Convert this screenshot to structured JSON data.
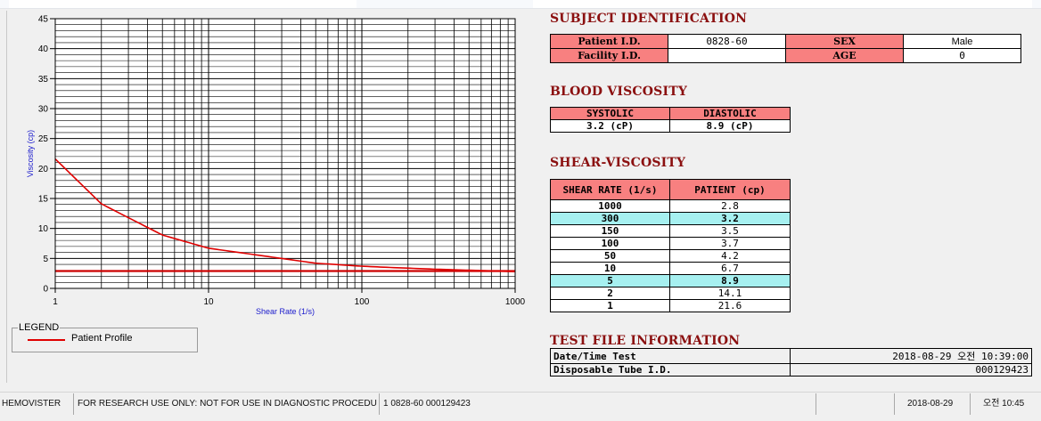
{
  "chart_data": {
    "type": "line",
    "xscale": "log",
    "xlabel": "Shear Rate (1/s)",
    "ylabel": "Viscosity (cp)",
    "xlim": [
      1,
      1000
    ],
    "ylim": [
      0,
      45
    ],
    "xticks": [
      "1",
      "10",
      "100",
      "1000"
    ],
    "yticks": [
      "0",
      "5",
      "10",
      "15",
      "20",
      "25",
      "30",
      "35",
      "40",
      "45"
    ],
    "grid": true,
    "series": [
      {
        "name": "Patient Profile",
        "color": "#e00000",
        "x": [
          1,
          2,
          5,
          10,
          50,
          100,
          150,
          300,
          1000
        ],
        "y": [
          21.6,
          14.1,
          8.9,
          6.7,
          4.2,
          3.7,
          3.5,
          3.2,
          2.8
        ]
      }
    ],
    "reference_line": {
      "y": 2.9,
      "color": "#cc0000"
    }
  },
  "legend": {
    "title": "LEGEND",
    "item_label": "Patient Profile"
  },
  "subject_identification": {
    "title": "SUBJECT IDENTIFICATION",
    "patient_id_label": "Patient I.D.",
    "patient_id": "0828-60",
    "sex_label": "SEX",
    "sex": "Male",
    "facility_id_label": "Facility I.D.",
    "facility_id": "",
    "age_label": "AGE",
    "age": "0"
  },
  "blood_viscosity": {
    "title": "BLOOD VISCOSITY",
    "systolic_label": "SYSTOLIC",
    "diastolic_label": "DIASTOLIC",
    "systolic": "3.2 (cP)",
    "diastolic": "8.9 (cP)"
  },
  "shear_viscosity": {
    "title": "SHEAR-VISCOSITY",
    "col_rate": "SHEAR RATE (1/s)",
    "col_patient": "PATIENT (cp)",
    "rows": [
      {
        "rate": "1000",
        "value": "2.8",
        "highlight": false
      },
      {
        "rate": "300",
        "value": "3.2",
        "highlight": true
      },
      {
        "rate": "150",
        "value": "3.5",
        "highlight": false
      },
      {
        "rate": "100",
        "value": "3.7",
        "highlight": false
      },
      {
        "rate": "50",
        "value": "4.2",
        "highlight": false
      },
      {
        "rate": "10",
        "value": "6.7",
        "highlight": false
      },
      {
        "rate": "5",
        "value": "8.9",
        "highlight": true
      },
      {
        "rate": "2",
        "value": "14.1",
        "highlight": false
      },
      {
        "rate": "1",
        "value": "21.6",
        "highlight": false
      }
    ]
  },
  "test_file": {
    "title": "TEST FILE INFORMATION",
    "datetime_label": "Date/Time Test",
    "datetime": "2018-08-29  오전 10:39:00",
    "tube_label": "Disposable Tube I.D.",
    "tube_id": "000129423"
  },
  "status_bar": {
    "app": "HEMOVISTER",
    "notice": "FOR RESEARCH USE ONLY: NOT FOR USE IN DIAGNOSTIC PROCEDURES",
    "record": "1  0828-60  000129423",
    "date": "2018-08-29",
    "time": "오전 10:45"
  }
}
